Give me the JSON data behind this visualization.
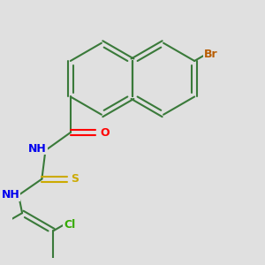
{
  "background_color": "#e0e0e0",
  "bond_color": "#3a7a3a",
  "atom_colors": {
    "Br": "#b85c00",
    "O": "#ff0000",
    "N": "#0000ee",
    "S": "#ccaa00",
    "Cl": "#33aa00",
    "C": "#3a7a3a"
  },
  "lw": 1.5,
  "figsize": [
    3.0,
    3.0
  ],
  "dpi": 100
}
